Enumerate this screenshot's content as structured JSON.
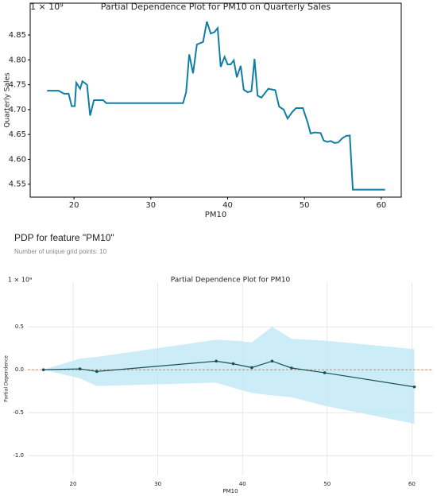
{
  "chart_data": [
    {
      "type": "line",
      "title": "Partial Dependence Plot for PM10 on Quarterly Sales",
      "xlabel": "PM10",
      "ylabel": "Quarterly Sales",
      "offset_label": "1 × 10⁹",
      "x": [
        16.5,
        18,
        18.7,
        19.3,
        19.7,
        20.1,
        20.3,
        20.8,
        21.1,
        21.7,
        22.1,
        22.6,
        23.8,
        24.2,
        34.2,
        34.6,
        35.0,
        35.5,
        36.0,
        36.8,
        37.3,
        37.8,
        38.3,
        38.7,
        39.1,
        39.6,
        40.0,
        40.4,
        40.8,
        41.2,
        41.7,
        42.1,
        42.6,
        43.1,
        43.5,
        43.9,
        44.4,
        45.3,
        46.2,
        46.7,
        47.3,
        47.8,
        48.4,
        48.9,
        49.8,
        50.4,
        50.8,
        51.3,
        52.1,
        52.5,
        53.0,
        53.4,
        53.9,
        54.4,
        54.9,
        55.4,
        55.9,
        56.3,
        60.5
      ],
      "values": [
        4.738,
        4.738,
        4.732,
        4.732,
        4.707,
        4.707,
        4.754,
        4.742,
        4.757,
        4.75,
        4.688,
        4.719,
        4.719,
        4.713,
        4.713,
        4.735,
        4.811,
        4.773,
        4.831,
        4.836,
        4.877,
        4.853,
        4.856,
        4.864,
        4.786,
        4.806,
        4.791,
        4.791,
        4.799,
        4.765,
        4.788,
        4.74,
        4.735,
        4.737,
        4.802,
        4.728,
        4.724,
        4.742,
        4.739,
        4.706,
        4.7,
        4.682,
        4.695,
        4.703,
        4.703,
        4.675,
        4.652,
        4.654,
        4.653,
        4.638,
        4.635,
        4.637,
        4.633,
        4.634,
        4.642,
        4.647,
        4.648,
        4.539,
        4.539
      ],
      "color": "#0f7ea6",
      "xlim": [
        14.3,
        62.6
      ],
      "xticks": [
        20,
        30,
        40,
        50,
        60
      ],
      "ylim": [
        4.524,
        4.914
      ],
      "yticks": [
        4.55,
        {
          "value": 4.6,
          "label": "4.60"
        },
        4.65,
        {
          "value": 4.7,
          "label": "4.70"
        },
        4.75,
        {
          "value": 4.8,
          "label": "4.80"
        },
        4.85
      ],
      "grid": false,
      "frame": true
    },
    {
      "type": "line",
      "header": "PDP for feature \"PM10\"",
      "subtitle": "Number of unique grid points: 10",
      "title": "Partial Dependence Plot for PM10",
      "xlabel": "PM10",
      "ylabel": "Partial Dependence",
      "offset_label": "1 × 10⁹",
      "x": [
        16.5,
        20.8,
        22.8,
        36.9,
        38.9,
        41.1,
        43.5,
        45.8,
        49.7,
        60.3
      ],
      "values": [
        0.0,
        0.01,
        -0.02,
        0.1,
        0.07,
        0.025,
        0.1,
        0.02,
        -0.035,
        -0.2
      ],
      "band_upper": [
        0.0,
        0.13,
        0.15,
        0.35,
        0.34,
        0.32,
        0.5,
        0.36,
        0.34,
        0.24
      ],
      "band_lower": [
        0.0,
        -0.1,
        -0.19,
        -0.15,
        -0.21,
        -0.27,
        -0.3,
        -0.32,
        -0.42,
        -0.63
      ],
      "color": "#1a4f55",
      "band_color": "#bfe8f5",
      "reference_line": 0,
      "reference_color": "#e05a4a",
      "markers": true,
      "xlim": [
        14.65,
        62.5
      ],
      "xticks": [
        20,
        30,
        40,
        50,
        60
      ],
      "ylim": [
        -1.23,
        1.02
      ],
      "yticks": [
        {
          "value": -1,
          "label": "-1.0"
        },
        -0.5,
        {
          "value": 0,
          "label": "0.0"
        },
        0.5
      ],
      "grid": true,
      "frame": false
    }
  ]
}
